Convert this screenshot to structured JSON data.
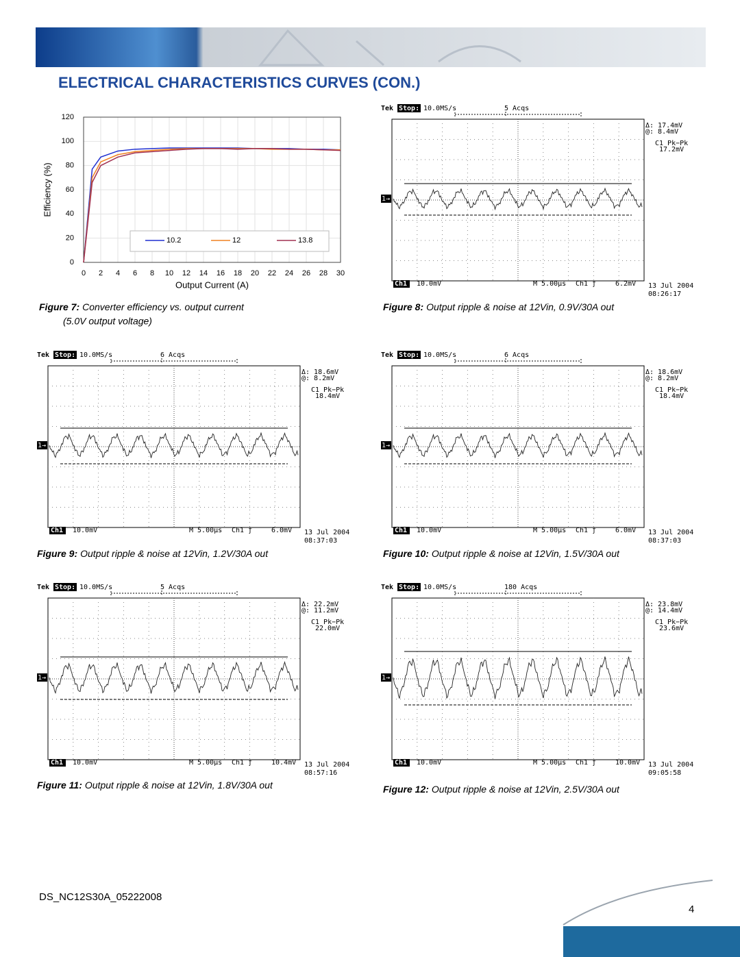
{
  "header": {
    "title": "ELECTRICAL CHARACTERISTICS CURVES (CON.)"
  },
  "chart_data": {
    "type": "line",
    "ylabel": "Efficiency (%)",
    "xlabel": "Output Current (A)",
    "x": [
      0,
      1,
      2,
      4,
      6,
      8,
      10,
      12,
      14,
      16,
      18,
      20,
      22,
      24,
      26,
      28,
      30
    ],
    "series": [
      {
        "name": "10.2",
        "color": "#1f2fd0",
        "values": [
          0,
          77,
          87,
          92,
          93.5,
          94,
          94.5,
          94.5,
          94.5,
          94.5,
          94.5,
          94,
          94,
          94,
          93.5,
          93.5,
          93
        ]
      },
      {
        "name": "12",
        "color": "#f08020",
        "values": [
          0,
          70,
          83,
          89,
          91.5,
          92.5,
          93.5,
          94,
          94,
          94,
          94,
          94,
          93.5,
          93.5,
          93.5,
          93,
          93
        ]
      },
      {
        "name": "13.8",
        "color": "#a03050",
        "values": [
          0,
          66,
          80,
          87,
          90.5,
          91.5,
          92.5,
          93.5,
          94,
          94,
          93.5,
          94,
          94,
          93.5,
          93.5,
          93,
          92.5
        ]
      }
    ],
    "xlim": [
      0,
      30
    ],
    "xticks": [
      0,
      2,
      4,
      6,
      8,
      10,
      12,
      14,
      16,
      18,
      20,
      22,
      24,
      26,
      28,
      30
    ],
    "ylim": [
      0,
      120
    ],
    "yticks": [
      0,
      20,
      40,
      60,
      80,
      100,
      120
    ],
    "grid": true
  },
  "figure7": {
    "label": "Figure 7:",
    "caption": "Converter efficiency vs. output current",
    "caption_line2": "(5.0V output voltage)"
  },
  "scopes": [
    {
      "label": "Figure 8:",
      "caption": "Output ripple & noise at 12Vin, 0.9V/30A out",
      "tek": "Tek",
      "stop": "Stop:",
      "sample_rate": "10.0MS/s",
      "acqs": "5 Acqs",
      "delta": "Δ: 17.4mV",
      "at": "@: 8.4mV",
      "meas_name": "C1 Pk−Pk",
      "meas_value": "17.2mV",
      "ch_marker": "1→",
      "channel": "Ch1",
      "volts_div": "10.0mV",
      "timebase": "M 5.00µs",
      "trigger_source": "Ch1 ƒ",
      "trigger_level": "6.2mV",
      "date": "13 Jul 2004",
      "time": "08:26:17"
    },
    {
      "label": "Figure 9:",
      "caption": "Output ripple & noise at 12Vin, 1.2V/30A out",
      "tek": "Tek",
      "stop": "Stop:",
      "sample_rate": "10.0MS/s",
      "acqs": "6 Acqs",
      "delta": "Δ: 18.6mV",
      "at": "@: 8.2mV",
      "meas_name": "C1 Pk−Pk",
      "meas_value": "18.4mV",
      "ch_marker": "1→",
      "channel": "Ch1",
      "volts_div": "10.0mV",
      "timebase": "M 5.00µs",
      "trigger_source": "Ch1 ƒ",
      "trigger_level": "6.0mV",
      "date": "13 Jul 2004",
      "time": "08:37:03"
    },
    {
      "label": "Figure 10:",
      "caption": "Output ripple & noise at 12Vin, 1.5V/30A out",
      "tek": "Tek",
      "stop": "Stop:",
      "sample_rate": "10.0MS/s",
      "acqs": "6 Acqs",
      "delta": "Δ: 18.6mV",
      "at": "@: 8.2mV",
      "meas_name": "C1 Pk−Pk",
      "meas_value": "18.4mV",
      "ch_marker": "1→",
      "channel": "Ch1",
      "volts_div": "10.0mV",
      "timebase": "M 5.00µs",
      "trigger_source": "Ch1 ƒ",
      "trigger_level": "6.0mV",
      "date": "13 Jul 2004",
      "time": "08:37:03"
    },
    {
      "label": "Figure 11:",
      "caption": "Output ripple & noise at 12Vin, 1.8V/30A out",
      "tek": "Tek",
      "stop": "Stop:",
      "sample_rate": "10.0MS/s",
      "acqs": "5 Acqs",
      "delta": "Δ: 22.2mV",
      "at": "@: 11.2mV",
      "meas_name": "C1 Pk−Pk",
      "meas_value": "22.0mV",
      "ch_marker": "1→",
      "channel": "Ch1",
      "volts_div": "10.0mV",
      "timebase": "M 5.00µs",
      "trigger_source": "Ch1 ƒ",
      "trigger_level": "10.4mV",
      "date": "13 Jul 2004",
      "time": "08:57:16"
    },
    {
      "label": "Figure 12:",
      "caption": "Output ripple & noise at 12Vin, 2.5V/30A out",
      "tek": "Tek",
      "stop": "Stop:",
      "sample_rate": "10.0MS/s",
      "acqs": "180 Acqs",
      "delta": "Δ: 23.8mV",
      "at": "@: 14.4mV",
      "meas_name": "C1 Pk−Pk",
      "meas_value": "23.6mV",
      "ch_marker": "1→",
      "channel": "Ch1",
      "volts_div": "10.0mV",
      "timebase": "M 5.00µs",
      "trigger_source": "Ch1 ƒ",
      "trigger_level": "10.0mV",
      "date": "13 Jul 2004",
      "time": "09:05:58"
    }
  ],
  "footer": {
    "doc_id": "DS_NC12S30A_05222008",
    "page": "4"
  }
}
